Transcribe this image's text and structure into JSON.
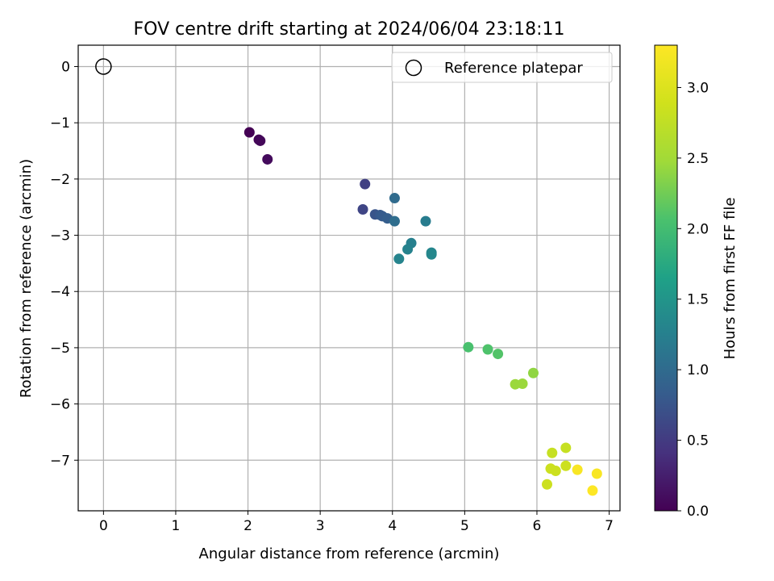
{
  "chart_data": {
    "type": "scatter",
    "title": "FOV centre drift starting at 2024/06/04 23:18:11",
    "xlabel": "Angular distance from reference (arcmin)",
    "ylabel": "Rotation from reference (arcmin)",
    "xlim": [
      -0.35,
      7.15
    ],
    "ylim": [
      -7.9,
      0.38
    ],
    "xticks": [
      0,
      1,
      2,
      3,
      4,
      5,
      6,
      7
    ],
    "yticks": [
      0,
      -1,
      -2,
      -3,
      -4,
      -5,
      -6,
      -7
    ],
    "grid": true,
    "legend_position": "top-right",
    "legend": [
      {
        "label": "Reference platepar",
        "marker": "open-circle"
      }
    ],
    "reference_point": {
      "x": 0,
      "y": 0
    },
    "colorbar": {
      "label": "Hours from first FF file",
      "range": [
        0.0,
        3.3
      ],
      "ticks": [
        "0.0",
        "0.5",
        "1.0",
        "1.5",
        "2.0",
        "2.5",
        "3.0"
      ],
      "colormap": "viridis"
    },
    "points": [
      {
        "x": 2.02,
        "y": -1.17,
        "t": 0.0
      },
      {
        "x": 2.15,
        "y": -1.3,
        "t": 0.02
      },
      {
        "x": 2.17,
        "y": -1.32,
        "t": 0.05
      },
      {
        "x": 2.27,
        "y": -1.65,
        "t": 0.08
      },
      {
        "x": 3.62,
        "y": -2.09,
        "t": 0.55
      },
      {
        "x": 3.59,
        "y": -2.54,
        "t": 0.6
      },
      {
        "x": 3.76,
        "y": -2.63,
        "t": 0.75
      },
      {
        "x": 3.83,
        "y": -2.64,
        "t": 0.8
      },
      {
        "x": 3.86,
        "y": -2.66,
        "t": 0.82
      },
      {
        "x": 3.93,
        "y": -2.7,
        "t": 0.85
      },
      {
        "x": 4.03,
        "y": -2.34,
        "t": 1.0
      },
      {
        "x": 4.03,
        "y": -2.75,
        "t": 1.02
      },
      {
        "x": 4.46,
        "y": -2.75,
        "t": 1.2
      },
      {
        "x": 4.26,
        "y": -3.14,
        "t": 1.25
      },
      {
        "x": 4.21,
        "y": -3.25,
        "t": 1.27
      },
      {
        "x": 4.09,
        "y": -3.42,
        "t": 1.3
      },
      {
        "x": 4.54,
        "y": -3.31,
        "t": 1.32
      },
      {
        "x": 4.54,
        "y": -3.34,
        "t": 1.34
      },
      {
        "x": 5.05,
        "y": -4.99,
        "t": 2.05
      },
      {
        "x": 5.32,
        "y": -5.03,
        "t": 2.08
      },
      {
        "x": 5.46,
        "y": -5.11,
        "t": 2.1
      },
      {
        "x": 5.95,
        "y": -5.45,
        "t": 2.4
      },
      {
        "x": 5.7,
        "y": -5.65,
        "t": 2.45
      },
      {
        "x": 5.8,
        "y": -5.64,
        "t": 2.45
      },
      {
        "x": 6.21,
        "y": -6.87,
        "t": 2.8
      },
      {
        "x": 6.4,
        "y": -6.78,
        "t": 2.8
      },
      {
        "x": 6.19,
        "y": -7.15,
        "t": 2.85
      },
      {
        "x": 6.26,
        "y": -7.19,
        "t": 2.85
      },
      {
        "x": 6.4,
        "y": -7.1,
        "t": 2.85
      },
      {
        "x": 6.14,
        "y": -7.43,
        "t": 2.85
      },
      {
        "x": 6.56,
        "y": -7.17,
        "t": 3.25
      },
      {
        "x": 6.83,
        "y": -7.24,
        "t": 3.25
      },
      {
        "x": 6.77,
        "y": -7.54,
        "t": 3.3
      }
    ]
  }
}
